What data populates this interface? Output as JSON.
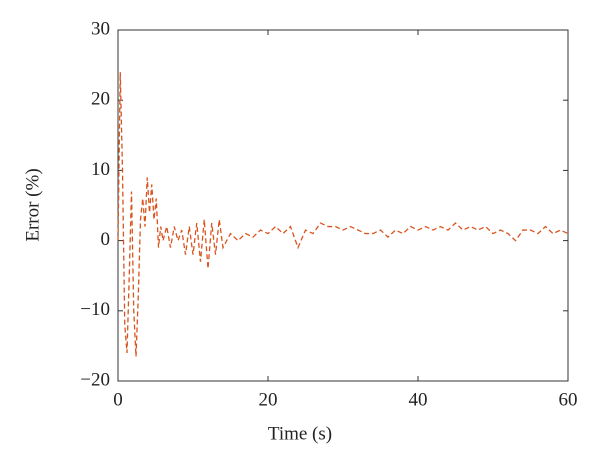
{
  "chart_data": {
    "type": "line",
    "xlabel": "Time (s)",
    "ylabel": "Error (%)",
    "x": [
      0,
      0.3,
      0.6,
      0.9,
      1.2,
      1.5,
      1.8,
      2.1,
      2.4,
      2.7,
      3.0,
      3.3,
      3.6,
      3.9,
      4.2,
      4.5,
      4.8,
      5.1,
      5.4,
      5.7,
      6.0,
      6.5,
      7,
      7.5,
      8,
      8.5,
      9,
      9.5,
      10,
      10.5,
      11,
      11.5,
      12,
      12.5,
      13,
      13.5,
      14,
      15,
      16,
      17,
      18,
      19,
      20,
      21,
      22,
      23,
      24,
      25,
      26,
      27,
      28,
      29,
      30,
      31,
      32,
      33,
      34,
      35,
      36,
      37,
      38,
      39,
      40,
      41,
      42,
      43,
      44,
      45,
      46,
      47,
      48,
      49,
      50,
      51,
      52,
      53,
      54,
      55,
      56,
      57,
      58,
      59,
      60
    ],
    "series": [
      {
        "color": "#d9541e",
        "values": [
          0,
          24,
          10,
          -12,
          -16,
          -5,
          7,
          -10,
          -16.5,
          -8,
          3,
          6,
          2,
          9,
          4,
          8,
          3,
          6,
          -1,
          2,
          0,
          2,
          -1,
          2,
          0,
          1.5,
          -2,
          2,
          -2,
          2.5,
          -3,
          3,
          -4,
          2.5,
          -2,
          3,
          -1,
          1,
          0,
          1,
          0.5,
          1.5,
          1,
          2,
          1,
          2,
          -1,
          1.5,
          1,
          2.5,
          2,
          2,
          1.5,
          2,
          1.5,
          1,
          1,
          1.5,
          0.5,
          1.5,
          1,
          2,
          1.5,
          2,
          1.5,
          2,
          1.5,
          2.5,
          1.5,
          2,
          1.5,
          2,
          1,
          1.5,
          1,
          0,
          1.5,
          1.5,
          1,
          2,
          1,
          1.5,
          1
        ]
      }
    ],
    "xlim": [
      0,
      60
    ],
    "xticks": [
      0,
      20,
      40,
      60
    ],
    "ylim": [
      -20,
      30
    ],
    "yticks": [
      {
        "value": -20,
        "label": "−20"
      },
      {
        "value": -10,
        "label": "−10"
      },
      0,
      10,
      20,
      30
    ]
  }
}
